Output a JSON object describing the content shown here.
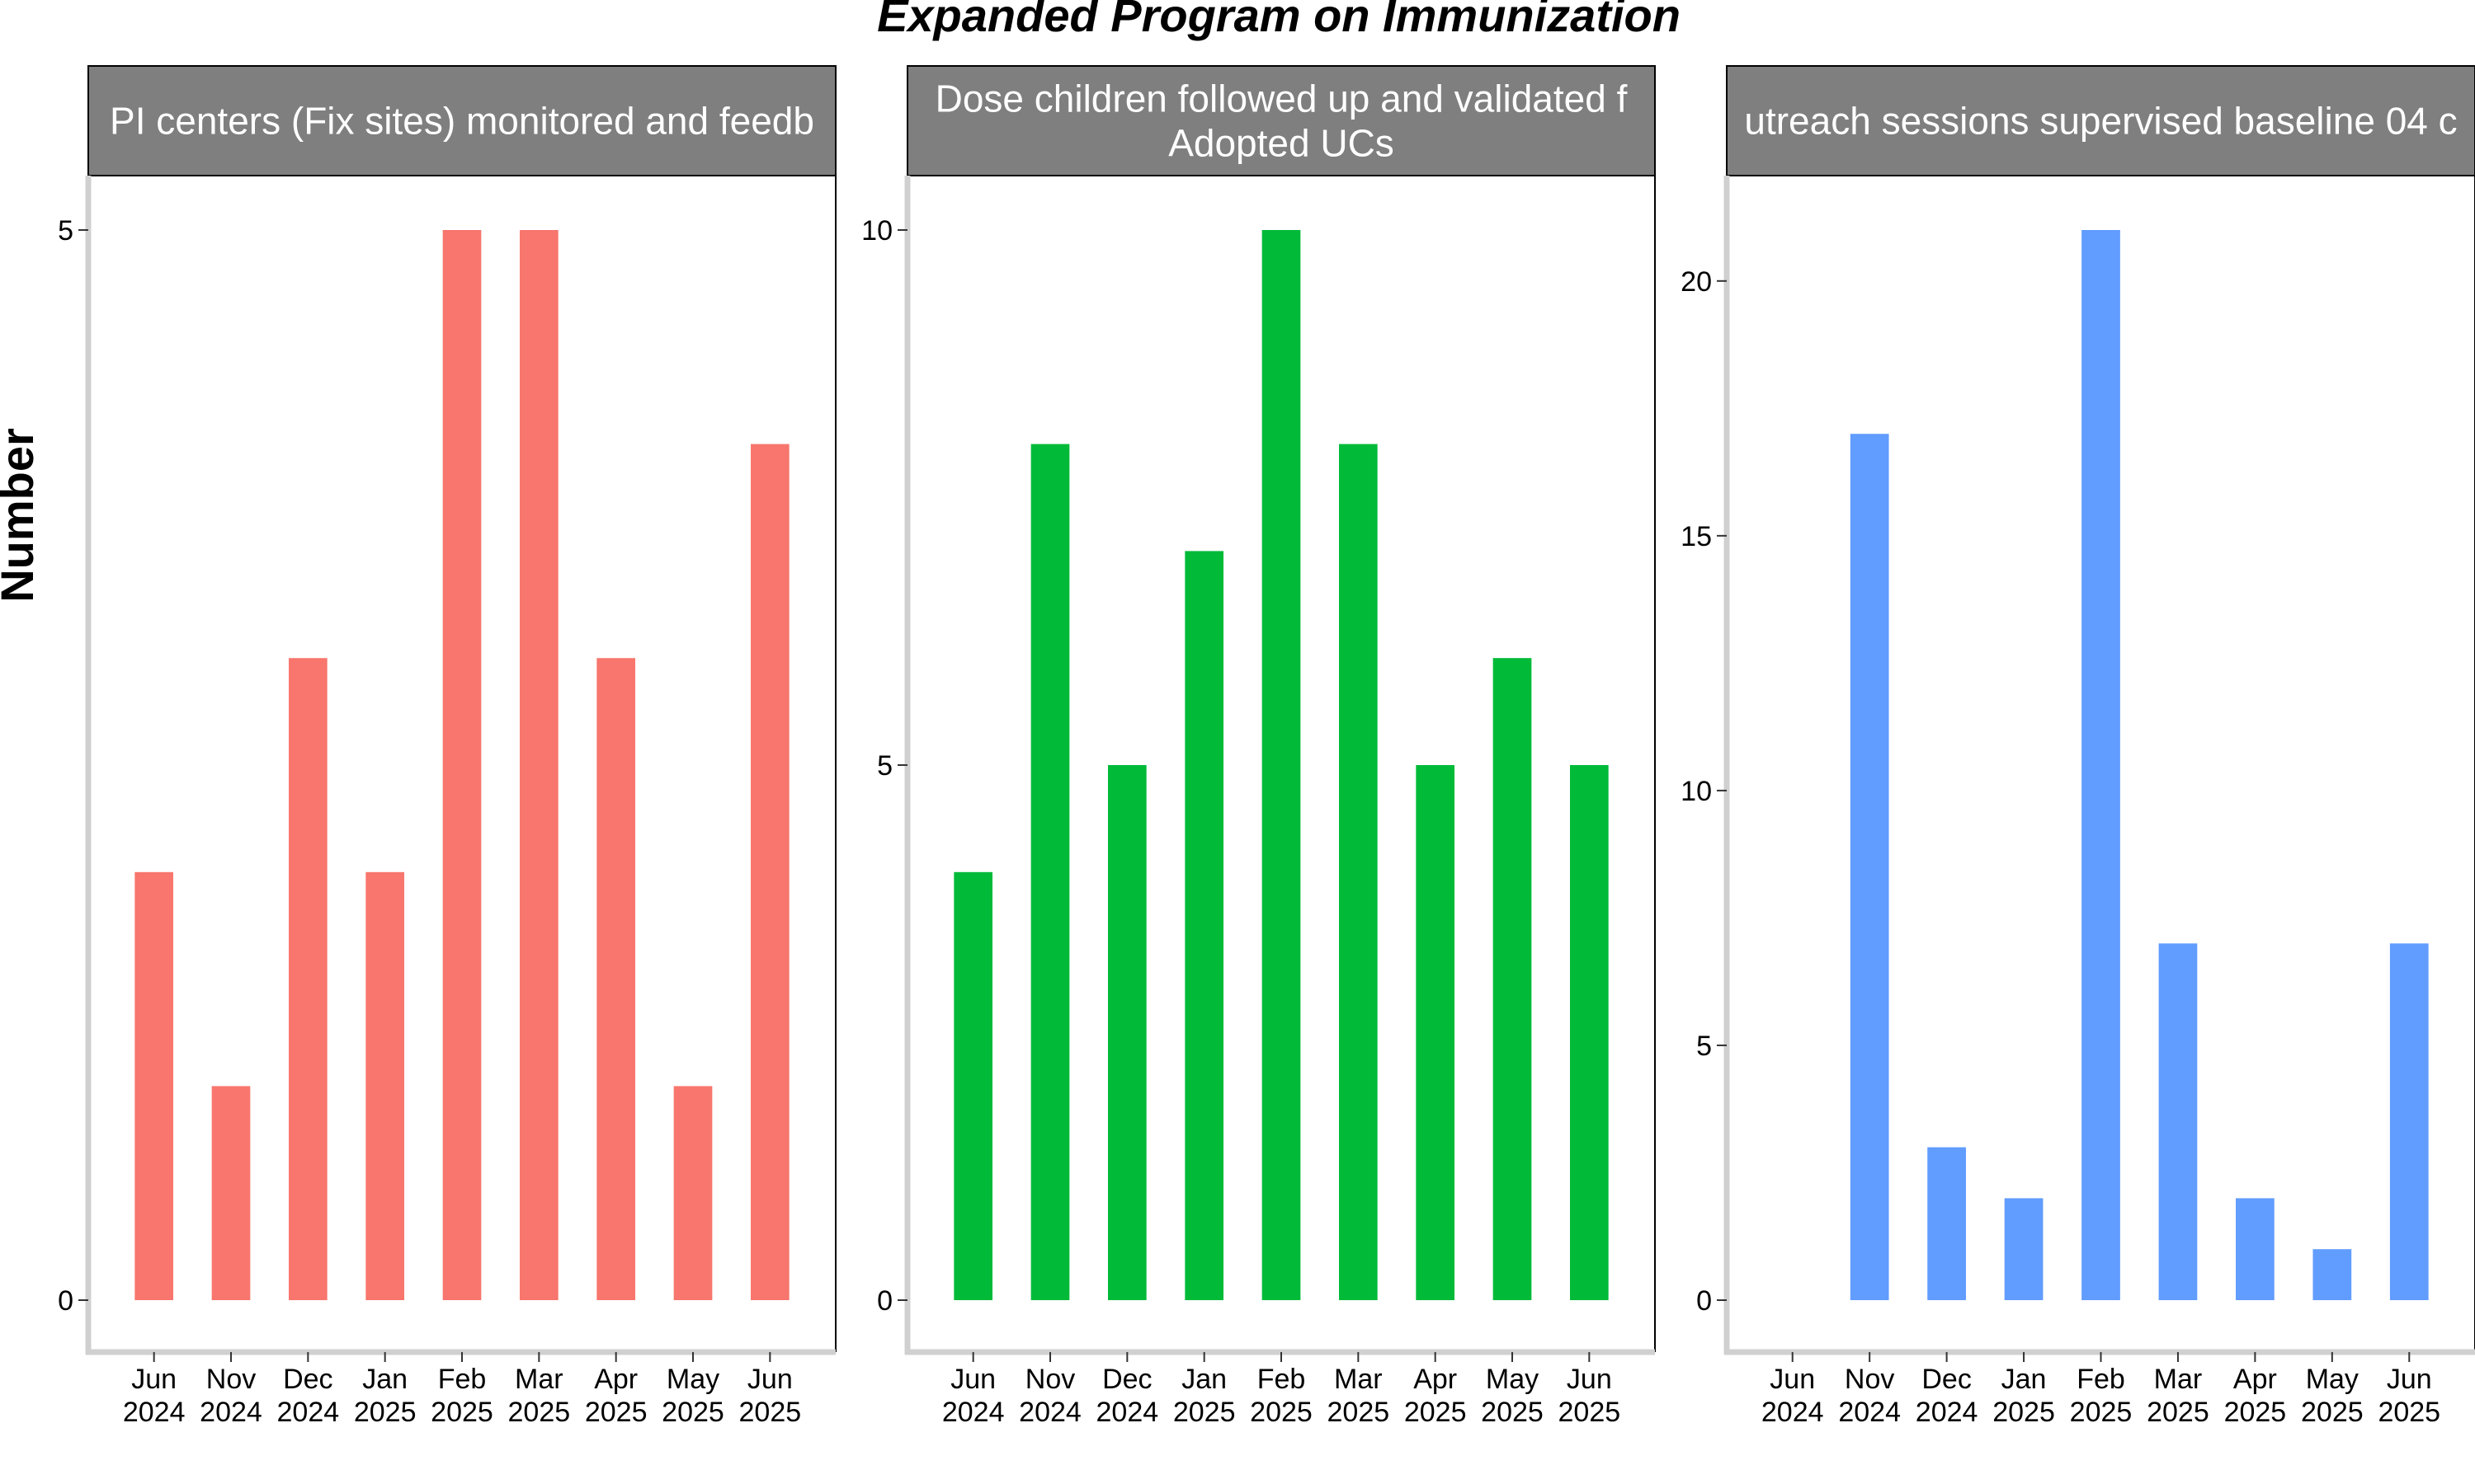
{
  "chart_data": {
    "type": "bar",
    "title": "Expanded Program on Immunization",
    "ylabel": "Number",
    "xlabel": "",
    "categories": [
      [
        "Jun",
        "2024"
      ],
      [
        "Nov",
        "2024"
      ],
      [
        "Dec",
        "2024"
      ],
      [
        "Jan",
        "2025"
      ],
      [
        "Feb",
        "2025"
      ],
      [
        "Mar",
        "2025"
      ],
      [
        "Apr",
        "2025"
      ],
      [
        "May",
        "2025"
      ],
      [
        "Jun",
        "2025"
      ]
    ],
    "panels": [
      {
        "strip_lines": [
          "PI centers (Fix sites) monitored and feedb"
        ],
        "color": "#F8766D",
        "ylim": [
          0,
          5
        ],
        "yticks": [
          0,
          5
        ],
        "values": [
          2,
          1,
          3,
          2,
          5,
          5,
          3,
          1,
          4
        ]
      },
      {
        "strip_lines": [
          "Dose children followed up and validated f",
          "Adopted UCs"
        ],
        "color": "#00BA38",
        "ylim": [
          0,
          10
        ],
        "yticks": [
          0,
          5,
          10
        ],
        "values": [
          4,
          8,
          5,
          7,
          10,
          8,
          5,
          6,
          5
        ]
      },
      {
        "strip_lines": [
          "utreach sessions supervised baseline 04 c"
        ],
        "color": "#619CFF",
        "ylim": [
          0,
          21
        ],
        "yticks": [
          0,
          5,
          10,
          15,
          20
        ],
        "values": [
          0,
          17,
          3,
          2,
          21,
          7,
          2,
          1,
          7
        ]
      }
    ]
  }
}
